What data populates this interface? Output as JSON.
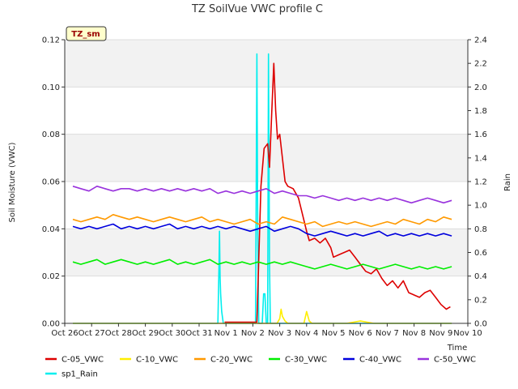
{
  "chart_data": {
    "type": "line",
    "title": "TZ SoilVue VWC profile C",
    "badge": "TZ_sm",
    "xlabel": "Time",
    "ylabel": "Soil Moisture (VWC)",
    "y2label": "Rain",
    "categories": [
      "Oct 26",
      "Oct 27",
      "Oct 28",
      "Oct 29",
      "Oct 30",
      "Oct 31",
      "Nov 1",
      "Nov 2",
      "Nov 3",
      "Nov 4",
      "Nov 5",
      "Nov 6",
      "Nov 7",
      "Nov 8",
      "Nov 9",
      "Nov 10"
    ],
    "ylim": [
      0,
      0.12
    ],
    "yticks": [
      "0.00",
      "0.02",
      "0.04",
      "0.06",
      "0.08",
      "0.10",
      "0.12"
    ],
    "y2lim": [
      0,
      2.4
    ],
    "y2ticks": [
      "0.0",
      "0.2",
      "0.4",
      "0.6",
      "0.8",
      "1.0",
      "1.2",
      "1.4",
      "1.6",
      "1.8",
      "2.0",
      "2.2",
      "2.4"
    ],
    "grid": true,
    "legend_position": "bottom",
    "series": [
      {
        "name": "C-05_VWC",
        "color": "#dd0000",
        "axis": "left",
        "x": [
          5.95,
          6.2,
          7.15,
          7.3,
          7.42,
          7.55,
          7.62,
          7.7,
          7.78,
          7.85,
          7.92,
          8.0,
          8.1,
          8.2,
          8.3,
          8.5,
          8.7,
          8.85,
          9.0,
          9.1,
          9.3,
          9.5,
          9.7,
          9.9,
          10.0,
          10.2,
          10.4,
          10.6,
          10.8,
          11.0,
          11.2,
          11.4,
          11.6,
          11.8,
          12.0,
          12.2,
          12.4,
          12.6,
          12.8,
          13.0,
          13.2,
          13.4,
          13.6,
          13.8,
          14.0,
          14.2,
          14.35
        ],
        "y": [
          0.0005,
          0.0005,
          0.0005,
          0.058,
          0.074,
          0.076,
          0.066,
          0.088,
          0.11,
          0.09,
          0.078,
          0.08,
          0.07,
          0.06,
          0.058,
          0.057,
          0.053,
          0.046,
          0.039,
          0.035,
          0.036,
          0.034,
          0.036,
          0.032,
          0.028,
          0.029,
          0.03,
          0.031,
          0.028,
          0.025,
          0.022,
          0.021,
          0.023,
          0.019,
          0.016,
          0.018,
          0.015,
          0.018,
          0.013,
          0.012,
          0.011,
          0.013,
          0.014,
          0.011,
          0.008,
          0.006,
          0.007
        ]
      },
      {
        "name": "C-10_VWC",
        "color": "#ffee00",
        "axis": "left",
        "x": [
          0.3,
          2,
          4,
          6,
          7.1,
          7.2,
          7.6,
          7.9,
          8.0,
          8.05,
          8.1,
          8.2,
          8.3,
          8.5,
          8.7,
          8.9,
          9.0,
          9.1,
          9.2,
          9.5,
          10,
          10.5,
          11,
          11.5,
          12,
          12.5,
          13,
          13.5,
          14,
          14.4
        ],
        "y": [
          0,
          0,
          0,
          0,
          0,
          0,
          0,
          0,
          0.002,
          0.006,
          0.003,
          0.001,
          0,
          0,
          0,
          0,
          0.005,
          0.001,
          0,
          0,
          0,
          0,
          0.001,
          0,
          0,
          0,
          0,
          0,
          0,
          0
        ]
      },
      {
        "name": "C-20_VWC",
        "color": "#ff9900",
        "axis": "left",
        "x": [
          0.3,
          0.6,
          0.9,
          1.2,
          1.5,
          1.8,
          2.1,
          2.4,
          2.7,
          3.0,
          3.3,
          3.6,
          3.9,
          4.2,
          4.5,
          4.8,
          5.1,
          5.4,
          5.7,
          6.0,
          6.3,
          6.6,
          6.9,
          7.2,
          7.5,
          7.8,
          8.1,
          8.4,
          8.7,
          9.0,
          9.3,
          9.6,
          9.9,
          10.2,
          10.5,
          10.8,
          11.1,
          11.4,
          11.7,
          12.0,
          12.3,
          12.6,
          12.9,
          13.2,
          13.5,
          13.8,
          14.1,
          14.4
        ],
        "y": [
          0.044,
          0.043,
          0.044,
          0.045,
          0.044,
          0.046,
          0.045,
          0.044,
          0.045,
          0.044,
          0.043,
          0.044,
          0.045,
          0.044,
          0.043,
          0.044,
          0.045,
          0.043,
          0.044,
          0.043,
          0.042,
          0.043,
          0.044,
          0.042,
          0.043,
          0.042,
          0.045,
          0.044,
          0.043,
          0.042,
          0.043,
          0.041,
          0.042,
          0.043,
          0.042,
          0.043,
          0.042,
          0.041,
          0.042,
          0.043,
          0.042,
          0.044,
          0.043,
          0.042,
          0.044,
          0.043,
          0.045,
          0.044
        ]
      },
      {
        "name": "C-30_VWC",
        "color": "#00ee00",
        "axis": "left",
        "x": [
          0.3,
          0.6,
          0.9,
          1.2,
          1.5,
          1.8,
          2.1,
          2.4,
          2.7,
          3.0,
          3.3,
          3.6,
          3.9,
          4.2,
          4.5,
          4.8,
          5.1,
          5.4,
          5.7,
          6.0,
          6.3,
          6.6,
          6.9,
          7.2,
          7.5,
          7.8,
          8.1,
          8.4,
          8.7,
          9.0,
          9.3,
          9.6,
          9.9,
          10.2,
          10.5,
          10.8,
          11.1,
          11.4,
          11.7,
          12.0,
          12.3,
          12.6,
          12.9,
          13.2,
          13.5,
          13.8,
          14.1,
          14.4
        ],
        "y": [
          0.026,
          0.025,
          0.026,
          0.027,
          0.025,
          0.026,
          0.027,
          0.026,
          0.025,
          0.026,
          0.025,
          0.026,
          0.027,
          0.025,
          0.026,
          0.025,
          0.026,
          0.027,
          0.025,
          0.026,
          0.025,
          0.026,
          0.025,
          0.026,
          0.025,
          0.026,
          0.025,
          0.026,
          0.025,
          0.024,
          0.023,
          0.024,
          0.025,
          0.024,
          0.023,
          0.024,
          0.025,
          0.024,
          0.023,
          0.024,
          0.025,
          0.024,
          0.023,
          0.024,
          0.023,
          0.024,
          0.023,
          0.024
        ]
      },
      {
        "name": "C-40_VWC",
        "color": "#0000dd",
        "axis": "left",
        "x": [
          0.3,
          0.6,
          0.9,
          1.2,
          1.5,
          1.8,
          2.1,
          2.4,
          2.7,
          3.0,
          3.3,
          3.6,
          3.9,
          4.2,
          4.5,
          4.8,
          5.1,
          5.4,
          5.7,
          6.0,
          6.3,
          6.6,
          6.9,
          7.2,
          7.5,
          7.8,
          8.1,
          8.4,
          8.7,
          9.0,
          9.3,
          9.6,
          9.9,
          10.2,
          10.5,
          10.8,
          11.1,
          11.4,
          11.7,
          12.0,
          12.3,
          12.6,
          12.9,
          13.2,
          13.5,
          13.8,
          14.1,
          14.4
        ],
        "y": [
          0.041,
          0.04,
          0.041,
          0.04,
          0.041,
          0.042,
          0.04,
          0.041,
          0.04,
          0.041,
          0.04,
          0.041,
          0.042,
          0.04,
          0.041,
          0.04,
          0.041,
          0.04,
          0.041,
          0.04,
          0.041,
          0.04,
          0.039,
          0.04,
          0.041,
          0.039,
          0.04,
          0.041,
          0.04,
          0.038,
          0.037,
          0.038,
          0.039,
          0.038,
          0.037,
          0.038,
          0.037,
          0.038,
          0.039,
          0.037,
          0.038,
          0.037,
          0.038,
          0.037,
          0.038,
          0.037,
          0.038,
          0.037
        ]
      },
      {
        "name": "C-50_VWC",
        "color": "#9933dd",
        "axis": "left",
        "x": [
          0.3,
          0.6,
          0.9,
          1.2,
          1.5,
          1.8,
          2.1,
          2.4,
          2.7,
          3.0,
          3.3,
          3.6,
          3.9,
          4.2,
          4.5,
          4.8,
          5.1,
          5.4,
          5.7,
          6.0,
          6.3,
          6.6,
          6.9,
          7.2,
          7.5,
          7.8,
          8.1,
          8.4,
          8.7,
          9.0,
          9.3,
          9.6,
          9.9,
          10.2,
          10.5,
          10.8,
          11.1,
          11.4,
          11.7,
          12.0,
          12.3,
          12.6,
          12.9,
          13.2,
          13.5,
          13.8,
          14.1,
          14.4
        ],
        "y": [
          0.058,
          0.057,
          0.056,
          0.058,
          0.057,
          0.056,
          0.057,
          0.057,
          0.056,
          0.057,
          0.056,
          0.057,
          0.056,
          0.057,
          0.056,
          0.057,
          0.056,
          0.057,
          0.055,
          0.056,
          0.055,
          0.056,
          0.055,
          0.056,
          0.057,
          0.055,
          0.056,
          0.055,
          0.054,
          0.054,
          0.053,
          0.054,
          0.053,
          0.052,
          0.053,
          0.052,
          0.053,
          0.052,
          0.053,
          0.052,
          0.053,
          0.052,
          0.051,
          0.052,
          0.053,
          0.052,
          0.051,
          0.052
        ]
      },
      {
        "name": "sp1_Rain",
        "color": "#00eeee",
        "axis": "right",
        "x": [
          0.3,
          5.7,
          5.74,
          5.76,
          5.78,
          5.8,
          5.84,
          5.9,
          7.1,
          7.15,
          7.18,
          7.22,
          7.26,
          7.3,
          7.35,
          7.4,
          7.45,
          7.5,
          7.55,
          7.58,
          7.62,
          7.65,
          7.7,
          7.8,
          8.0,
          8.5,
          9,
          10,
          11,
          12,
          13,
          14,
          14.4
        ],
        "y": [
          0,
          0,
          0.5,
          0.78,
          0.4,
          0.25,
          0.1,
          0,
          0,
          2.28,
          0.8,
          0,
          0,
          0,
          0,
          0.25,
          0.25,
          0,
          0,
          2.28,
          0.5,
          0,
          0,
          0,
          0,
          0,
          0,
          0,
          0,
          0,
          0,
          0,
          0
        ]
      }
    ]
  }
}
